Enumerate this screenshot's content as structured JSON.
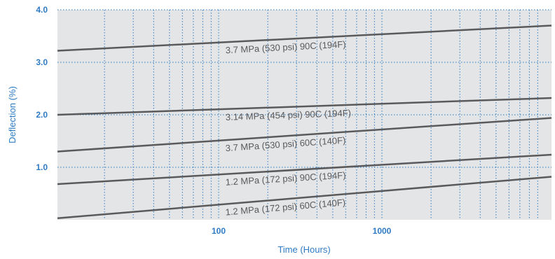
{
  "colors": {
    "plot_background": "#e4e5e6",
    "grid": "#2e7bc4",
    "line": "#5a5a5c",
    "axis_text": "#2e7bc4",
    "label_text": "#5a5a5c"
  },
  "chart_data": {
    "type": "line",
    "title": "",
    "xlabel": "Time (Hours)",
    "ylabel": "Deflection (%)",
    "xscale": "log",
    "xlim": [
      10,
      10000
    ],
    "ylim": [
      0,
      4.0
    ],
    "xticks": [
      100,
      1000
    ],
    "xtick_labels": [
      "100",
      "1000"
    ],
    "yticks": [
      1.0,
      2.0,
      3.0,
      4.0
    ],
    "ytick_labels": [
      "1.0",
      "2.0",
      "3.0",
      "4.0"
    ],
    "grid": "dotted vertical at each log decade subdivision, dotted horizontal at each y tick",
    "legend": "none (labels placed along lines)",
    "series": [
      {
        "name": "3.7 MPa (530 psi) 90C (194F)",
        "x": [
          10,
          10000
        ],
        "y": [
          3.22,
          3.7
        ]
      },
      {
        "name": "3.14 MPa (454 psi) 90C (194F)",
        "x": [
          10,
          10000
        ],
        "y": [
          2.0,
          2.32
        ]
      },
      {
        "name": "3.7 MPa (530 psi) 60C (140F)",
        "x": [
          10,
          10000
        ],
        "y": [
          1.3,
          1.94
        ]
      },
      {
        "name": "1.2 MPa (172 psi) 90C (194F)",
        "x": [
          10,
          10000
        ],
        "y": [
          0.68,
          1.24
        ]
      },
      {
        "name": "1.2 MPa (172 psi) 60C (140F)",
        "x": [
          10,
          10000
        ],
        "y": [
          0.03,
          0.82
        ]
      }
    ]
  }
}
